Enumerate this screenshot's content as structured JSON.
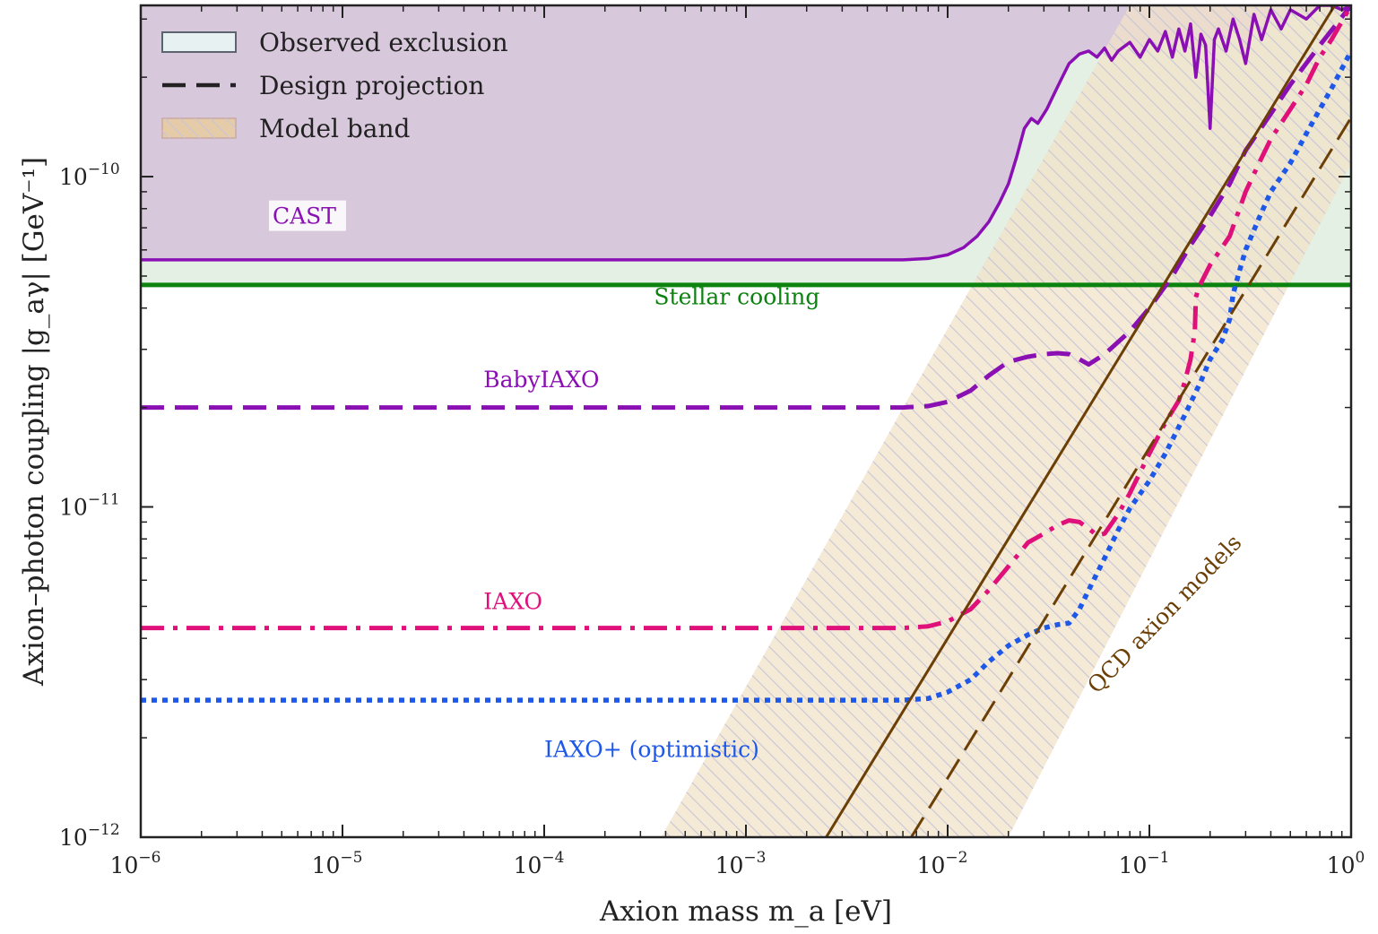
{
  "chart_data": {
    "type": "line",
    "xlabel": "Axion mass m_a [eV]",
    "ylabel": "Axion–photon coupling |g_aγ| [GeV⁻¹]",
    "xscale": "log",
    "yscale": "log",
    "xlim": [
      1e-06,
      1
    ],
    "ylim": [
      1e-12,
      3.3e-10
    ],
    "x_ticks": [
      {
        "value": 1e-06,
        "base": "10",
        "exp": "−6"
      },
      {
        "value": 1e-05,
        "base": "10",
        "exp": "−5"
      },
      {
        "value": 0.0001,
        "base": "10",
        "exp": "−4"
      },
      {
        "value": 0.001,
        "base": "10",
        "exp": "−3"
      },
      {
        "value": 0.01,
        "base": "10",
        "exp": "−2"
      },
      {
        "value": 0.1,
        "base": "10",
        "exp": "−1"
      },
      {
        "value": 1,
        "base": "10",
        "exp": "0"
      }
    ],
    "y_ticks": [
      {
        "value": 1e-12,
        "base": "10",
        "exp": "−12"
      },
      {
        "value": 1e-11,
        "base": "10",
        "exp": "−11"
      },
      {
        "value": 1e-10,
        "base": "10",
        "exp": "−10"
      }
    ],
    "legend": {
      "position": "top-left",
      "entries": [
        {
          "label": "Observed exclusion",
          "kind": "patch",
          "color": "#e8f1f1"
        },
        {
          "label": "Design projection",
          "kind": "dashed-line",
          "color": "#222222"
        },
        {
          "label": "Model band",
          "kind": "hatched-patch",
          "color": "#e6cba8"
        }
      ]
    },
    "series": [
      {
        "name": "CAST",
        "style": "solid",
        "color": "#8a10b4",
        "fill": "#d8c8dc",
        "points": [
          [
            1e-06,
            5.6e-11
          ],
          [
            0.001,
            5.6e-11
          ],
          [
            0.006,
            5.6e-11
          ],
          [
            0.008,
            5.65e-11
          ],
          [
            0.01,
            5.8e-11
          ],
          [
            0.012,
            6.1e-11
          ],
          [
            0.014,
            6.6e-11
          ],
          [
            0.016,
            7.3e-11
          ],
          [
            0.018,
            8.3e-11
          ],
          [
            0.02,
            9.5e-11
          ],
          [
            0.022,
            1.15e-10
          ],
          [
            0.024,
            1.4e-10
          ],
          [
            0.026,
            1.5e-10
          ],
          [
            0.028,
            1.45e-10
          ],
          [
            0.031,
            1.6e-10
          ],
          [
            0.034,
            1.8e-10
          ],
          [
            0.037,
            2e-10
          ],
          [
            0.04,
            2.2e-10
          ],
          [
            0.045,
            2.35e-10
          ],
          [
            0.05,
            2.4e-10
          ],
          [
            0.055,
            2.3e-10
          ],
          [
            0.06,
            2.45e-10
          ],
          [
            0.065,
            2.25e-10
          ],
          [
            0.07,
            2.4e-10
          ],
          [
            0.08,
            2.55e-10
          ],
          [
            0.09,
            2.3e-10
          ],
          [
            0.1,
            2.6e-10
          ],
          [
            0.11,
            2.4e-10
          ],
          [
            0.12,
            2.75e-10
          ],
          [
            0.13,
            2.3e-10
          ],
          [
            0.14,
            2.8e-10
          ],
          [
            0.15,
            2.4e-10
          ],
          [
            0.16,
            2.9e-10
          ],
          [
            0.17,
            2e-10
          ],
          [
            0.18,
            2.7e-10
          ],
          [
            0.19,
            2.5e-10
          ],
          [
            0.2,
            1.4e-10
          ],
          [
            0.21,
            2.6e-10
          ],
          [
            0.22,
            2.8e-10
          ],
          [
            0.24,
            2.4e-10
          ],
          [
            0.26,
            3e-10
          ],
          [
            0.28,
            2.6e-10
          ],
          [
            0.3,
            2.2e-10
          ],
          [
            0.33,
            3.1e-10
          ],
          [
            0.36,
            2.6e-10
          ],
          [
            0.4,
            3.2e-10
          ],
          [
            0.45,
            2.8e-10
          ],
          [
            0.5,
            3.2e-10
          ],
          [
            0.6,
            3e-10
          ],
          [
            0.7,
            3.3e-10
          ],
          [
            0.8,
            3.3e-10
          ],
          [
            0.9,
            3.2e-10
          ],
          [
            1.0,
            3.3e-10
          ]
        ]
      },
      {
        "name": "Stellar cooling",
        "style": "solid",
        "color": "#0c820f",
        "fill": "#e3f0e3",
        "points": [
          [
            1e-06,
            4.7e-11
          ],
          [
            1,
            4.7e-11
          ]
        ]
      },
      {
        "name": "BabyIAXO",
        "style": "dashed",
        "color": "#8a10b4",
        "points": [
          [
            1e-06,
            2e-11
          ],
          [
            0.001,
            2e-11
          ],
          [
            0.006,
            2e-11
          ],
          [
            0.008,
            2.02e-11
          ],
          [
            0.01,
            2.08e-11
          ],
          [
            0.013,
            2.25e-11
          ],
          [
            0.016,
            2.5e-11
          ],
          [
            0.02,
            2.75e-11
          ],
          [
            0.025,
            2.85e-11
          ],
          [
            0.03,
            2.9e-11
          ],
          [
            0.035,
            2.92e-11
          ],
          [
            0.04,
            2.9e-11
          ],
          [
            0.045,
            2.8e-11
          ],
          [
            0.05,
            2.7e-11
          ],
          [
            0.06,
            2.9e-11
          ],
          [
            0.08,
            3.4e-11
          ],
          [
            0.1,
            4e-11
          ],
          [
            0.13,
            5e-11
          ],
          [
            0.16,
            6.2e-11
          ],
          [
            0.2,
            7.6e-11
          ],
          [
            0.25,
            9.5e-11
          ],
          [
            0.3,
            1.2e-10
          ],
          [
            0.4,
            1.55e-10
          ],
          [
            0.5,
            1.9e-10
          ],
          [
            0.7,
            2.5e-10
          ],
          [
            1.0,
            3.3e-10
          ]
        ]
      },
      {
        "name": "IAXO",
        "style": "dashdot",
        "color": "#e0107a",
        "points": [
          [
            1e-06,
            4.3e-12
          ],
          [
            0.001,
            4.3e-12
          ],
          [
            0.006,
            4.3e-12
          ],
          [
            0.008,
            4.35e-12
          ],
          [
            0.01,
            4.5e-12
          ],
          [
            0.013,
            4.9e-12
          ],
          [
            0.016,
            5.6e-12
          ],
          [
            0.02,
            6.6e-12
          ],
          [
            0.025,
            7.8e-12
          ],
          [
            0.03,
            8.3e-12
          ],
          [
            0.035,
            8.8e-12
          ],
          [
            0.04,
            9.1e-12
          ],
          [
            0.045,
            9e-12
          ],
          [
            0.05,
            8.6e-12
          ],
          [
            0.055,
            8.2e-12
          ],
          [
            0.06,
            8.3e-12
          ],
          [
            0.07,
            9.5e-12
          ],
          [
            0.08,
            1.1e-11
          ],
          [
            0.1,
            1.45e-11
          ],
          [
            0.12,
            1.8e-11
          ],
          [
            0.14,
            2.1e-11
          ],
          [
            0.15,
            2.4e-11
          ],
          [
            0.16,
            2.8e-11
          ],
          [
            0.168,
            3.4e-11
          ],
          [
            0.17,
            4.3e-11
          ],
          [
            0.175,
            4.6e-11
          ],
          [
            0.2,
            5.4e-11
          ],
          [
            0.25,
            6.6e-11
          ],
          [
            0.3,
            9e-11
          ],
          [
            0.35,
            1.1e-10
          ],
          [
            0.4,
            1.3e-10
          ],
          [
            0.5,
            1.6e-10
          ],
          [
            0.6,
            1.9e-10
          ],
          [
            0.7,
            2.3e-10
          ],
          [
            0.8,
            2.6e-10
          ],
          [
            1.0,
            3.3e-10
          ]
        ]
      },
      {
        "name": "IAXO+ (optimistic)",
        "style": "dotted",
        "color": "#1e58e8",
        "points": [
          [
            1e-06,
            2.6e-12
          ],
          [
            0.001,
            2.6e-12
          ],
          [
            0.006,
            2.6e-12
          ],
          [
            0.008,
            2.63e-12
          ],
          [
            0.01,
            2.75e-12
          ],
          [
            0.013,
            3e-12
          ],
          [
            0.016,
            3.4e-12
          ],
          [
            0.02,
            3.8e-12
          ],
          [
            0.025,
            4.1e-12
          ],
          [
            0.03,
            4.3e-12
          ],
          [
            0.035,
            4.4e-12
          ],
          [
            0.04,
            4.45e-12
          ],
          [
            0.045,
            4.9e-12
          ],
          [
            0.05,
            5.6e-12
          ],
          [
            0.06,
            7e-12
          ],
          [
            0.07,
            8.5e-12
          ],
          [
            0.08,
            9.9e-12
          ],
          [
            0.1,
            1.2e-11
          ],
          [
            0.12,
            1.45e-11
          ],
          [
            0.15,
            1.9e-11
          ],
          [
            0.18,
            2.4e-11
          ],
          [
            0.2,
            2.8e-11
          ],
          [
            0.23,
            3.2e-11
          ],
          [
            0.25,
            3.7e-11
          ],
          [
            0.26,
            4.4e-11
          ],
          [
            0.27,
            4.8e-11
          ],
          [
            0.28,
            5.2e-11
          ],
          [
            0.3,
            6e-11
          ],
          [
            0.35,
            7.5e-11
          ],
          [
            0.4,
            9e-11
          ],
          [
            0.5,
            1.1e-10
          ],
          [
            0.6,
            1.35e-10
          ],
          [
            0.7,
            1.6e-10
          ],
          [
            0.8,
            1.85e-10
          ],
          [
            1.0,
            2.4e-10
          ]
        ]
      },
      {
        "name": "QCD axion models",
        "style": "solid",
        "color": "#6b3f05",
        "points": [
          [
            0.0025,
            1e-12
          ],
          [
            0.005,
            2e-12
          ],
          [
            0.01,
            4e-12
          ],
          [
            0.05,
            2e-11
          ],
          [
            0.1,
            4e-11
          ],
          [
            0.5,
            2e-10
          ],
          [
            0.83,
            3.3e-10
          ]
        ]
      },
      {
        "name": "QCD axion models",
        "style": "dashed",
        "color": "#6b3f05",
        "points": [
          [
            0.0066,
            1e-12
          ],
          [
            0.01,
            1.51e-12
          ],
          [
            0.1,
            1.51e-11
          ],
          [
            1,
            1.51e-10
          ]
        ]
      }
    ],
    "model_band": {
      "color": "#f1e3c8",
      "hatch_color": "#c8c4d8",
      "polygon": [
        [
          0.00038,
          1e-12
        ],
        [
          0.02,
          1e-12
        ],
        [
          1,
          1.1e-10
        ],
        [
          1,
          3.3e-10
        ],
        [
          0.08,
          3.3e-10
        ]
      ]
    },
    "annotations": [
      {
        "text": "CAST",
        "color": "#8a10b4",
        "at": [
          4.5e-06,
          7.2e-11
        ]
      },
      {
        "text": "Stellar cooling",
        "color": "#0c820f",
        "at": [
          0.00035,
          4.1e-11
        ]
      },
      {
        "text": "BabyIAXO",
        "color": "#8a10b4",
        "at": [
          5e-05,
          2.3e-11
        ]
      },
      {
        "text": "IAXO",
        "color": "#e0107a",
        "at": [
          5e-05,
          4.9e-12
        ]
      },
      {
        "text": "IAXO+ (optimistic)",
        "color": "#1e58e8",
        "at": [
          0.0001,
          1.75e-12
        ]
      },
      {
        "text": "QCD axion models",
        "color": "#6b3f05",
        "at": [
          0.055,
          2.7e-12
        ],
        "rotate": -46
      }
    ]
  }
}
